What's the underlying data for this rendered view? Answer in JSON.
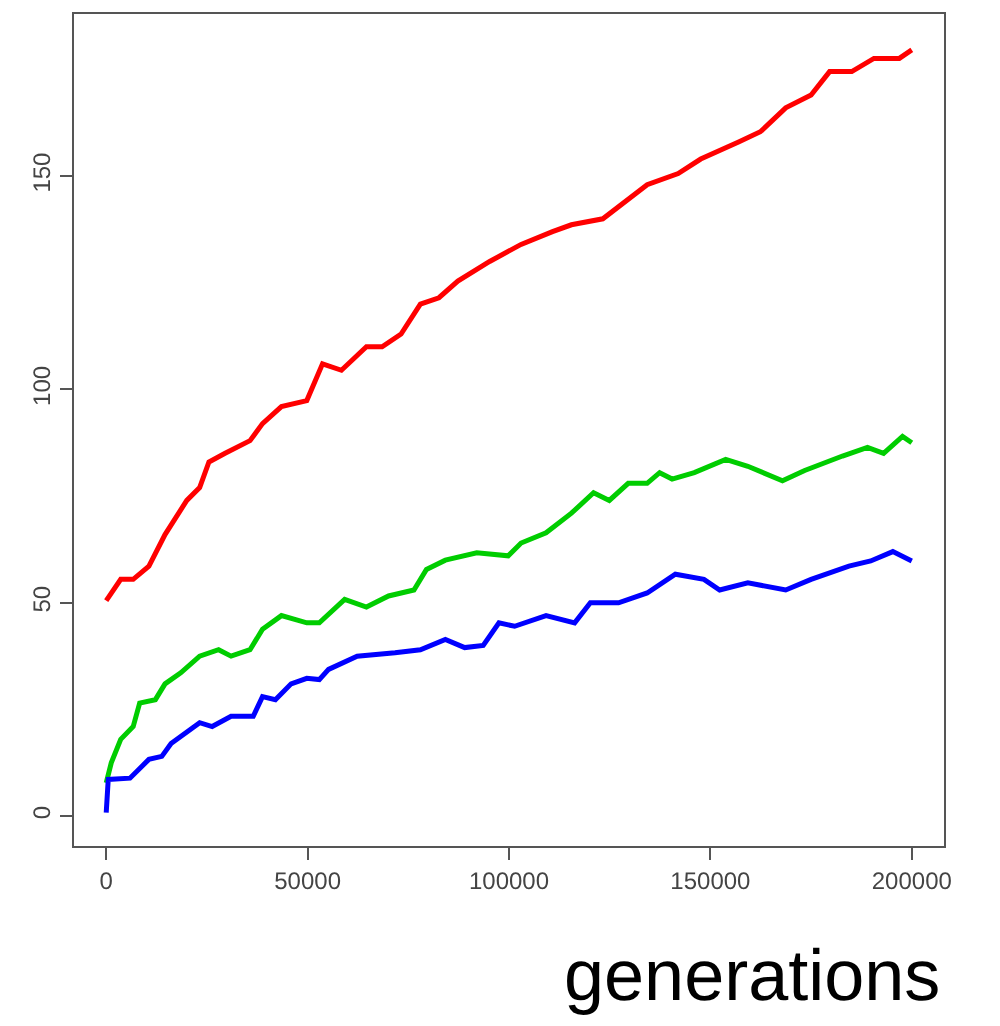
{
  "chart_data": {
    "type": "line",
    "xlabel": "generations",
    "xlim": [
      -8000,
      208000
    ],
    "xticks": [
      0,
      50000,
      100000,
      150000,
      200000
    ],
    "ylim": [
      -7,
      188
    ],
    "yticks": [
      0,
      50,
      100,
      150
    ],
    "marker": "none",
    "line_style": "solid",
    "series": [
      {
        "color": "#ff0000",
        "x": [
          0,
          3600,
          6700,
          10600,
          14600,
          20000,
          23200,
          25500,
          29400,
          35700,
          38800,
          43500,
          49800,
          53700,
          58400,
          64600,
          68500,
          73200,
          78000,
          82600,
          87300,
          95200,
          103000,
          110800,
          115500,
          123300,
          134300,
          142000,
          147600,
          157000,
          162400,
          168700,
          175000,
          179600,
          185100,
          190600,
          196900,
          200000
        ],
        "values": [
          50.5,
          55.5,
          55.5,
          58.6,
          66,
          74,
          77,
          83,
          85,
          88,
          92,
          96,
          97.4,
          106,
          104.5,
          110,
          110,
          113,
          120,
          121.5,
          125.4,
          130,
          134,
          137,
          138.6,
          140,
          148,
          150.6,
          154,
          158,
          160.4,
          166,
          169,
          174.5,
          174.5,
          177.6,
          177.6,
          179.6
        ]
      },
      {
        "color": "#00cd00",
        "x": [
          0,
          1250,
          3600,
          6700,
          8300,
          12200,
          14600,
          18500,
          23200,
          27900,
          31000,
          35700,
          38800,
          43500,
          49800,
          52900,
          59200,
          64600,
          70100,
          76400,
          79500,
          84200,
          92000,
          99800,
          103000,
          109200,
          115500,
          121000,
          124900,
          129600,
          134300,
          137400,
          140500,
          146000,
          153800,
          159300,
          167900,
          173400,
          182800,
          189000,
          193000,
          197700,
          200000
        ],
        "values": [
          7.8,
          12.5,
          18,
          21,
          26.5,
          27.3,
          31,
          33.6,
          37.5,
          39,
          37.5,
          39,
          43.8,
          47,
          45.3,
          45.3,
          50.8,
          49,
          51.6,
          53,
          57.8,
          60,
          61.7,
          61,
          64,
          66.4,
          71,
          75.8,
          74,
          78,
          78,
          80.5,
          79,
          80.5,
          83.6,
          82,
          78.6,
          81,
          84.4,
          86.4,
          85,
          89,
          87.5
        ]
      },
      {
        "color": "#0000ff",
        "x": [
          0,
          500,
          5900,
          10600,
          13800,
          16100,
          23200,
          26300,
          31000,
          36500,
          38800,
          42000,
          45900,
          49800,
          52900,
          55200,
          62300,
          71700,
          78000,
          84200,
          89000,
          93600,
          97500,
          101400,
          109200,
          116300,
          120200,
          127200,
          134300,
          141300,
          148400,
          152300,
          159300,
          168700,
          175000,
          184400,
          189800,
          195300,
          200000
        ],
        "values": [
          0.8,
          8.6,
          8.9,
          13.3,
          14,
          17,
          21.9,
          21,
          23.4,
          23.4,
          28,
          27.3,
          31,
          32.3,
          32,
          34.4,
          37.5,
          38.3,
          39,
          41.4,
          39.5,
          40,
          45.3,
          44.5,
          47,
          45.3,
          50,
          50,
          52.3,
          56.7,
          55.5,
          53,
          54.7,
          53,
          55.5,
          58.6,
          59.8,
          62,
          59.8
        ]
      }
    ]
  }
}
